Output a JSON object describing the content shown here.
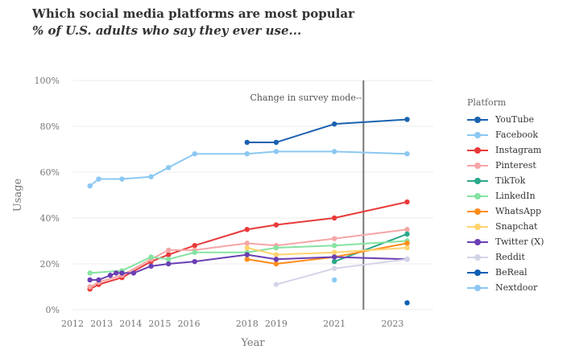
{
  "title": "Which social media platforms are most popular",
  "subtitle": "% of U.S. adults who say they ever use...",
  "chart_data": {
    "type": "line",
    "xlabel": "Year",
    "ylabel": "Usage",
    "xlim": [
      2012,
      2024.4
    ],
    "ylim": [
      0,
      100
    ],
    "x_ticks": [
      2012,
      2013,
      2014,
      2015,
      2016,
      2018,
      2019,
      2021,
      2023
    ],
    "y_ticks": [
      "0%",
      "20%",
      "40%",
      "60%",
      "80%",
      "100%"
    ],
    "y_tick_values": [
      0,
      20,
      40,
      60,
      80,
      100
    ],
    "grid": "horizontal",
    "legend_title": "Platform",
    "legend_position": "right",
    "annotation": {
      "text": "Change in survey mode--",
      "x": 2022.0
    },
    "series": [
      {
        "name": "YouTube",
        "color": "#1a62b0",
        "points": [
          [
            2018,
            73
          ],
          [
            2019,
            73
          ],
          [
            2021,
            81
          ],
          [
            2023.5,
            83
          ]
        ]
      },
      {
        "name": "Facebook",
        "color": "#8bc8f2",
        "points": [
          [
            2012.6,
            54
          ],
          [
            2012.9,
            57
          ],
          [
            2013.7,
            57
          ],
          [
            2014.7,
            58
          ],
          [
            2015.3,
            62
          ],
          [
            2016.2,
            68
          ],
          [
            2018,
            68
          ],
          [
            2019,
            69
          ],
          [
            2021,
            69
          ],
          [
            2023.5,
            68
          ]
        ]
      },
      {
        "name": "Instagram",
        "color": "#e83a3a",
        "points": [
          [
            2012.6,
            9
          ],
          [
            2012.9,
            11
          ],
          [
            2013.7,
            14
          ],
          [
            2014.7,
            21
          ],
          [
            2015.3,
            24
          ],
          [
            2016.2,
            28
          ],
          [
            2018,
            35
          ],
          [
            2019,
            37
          ],
          [
            2021,
            40
          ],
          [
            2023.5,
            47
          ]
        ]
      },
      {
        "name": "Pinterest",
        "color": "#f5a6a6",
        "points": [
          [
            2012.6,
            10
          ],
          [
            2012.9,
            12
          ],
          [
            2013.7,
            15
          ],
          [
            2014.7,
            22
          ],
          [
            2015.3,
            26
          ],
          [
            2016.2,
            26
          ],
          [
            2018,
            29
          ],
          [
            2019,
            28
          ],
          [
            2021,
            31
          ],
          [
            2023.5,
            35
          ]
        ]
      },
      {
        "name": "TikTok",
        "color": "#2ba88a",
        "points": [
          [
            2021,
            21
          ],
          [
            2023.5,
            33
          ]
        ]
      },
      {
        "name": "LinkedIn",
        "color": "#86e3a1",
        "points": [
          [
            2012.6,
            16
          ],
          [
            2013.7,
            17
          ],
          [
            2014.7,
            23
          ],
          [
            2015.3,
            22
          ],
          [
            2016.2,
            25
          ],
          [
            2018,
            25
          ],
          [
            2019,
            27
          ],
          [
            2021,
            28
          ],
          [
            2023.5,
            30
          ]
        ]
      },
      {
        "name": "WhatsApp",
        "color": "#ff8c1a",
        "points": [
          [
            2018,
            22
          ],
          [
            2019,
            20
          ],
          [
            2021,
            23
          ],
          [
            2023.5,
            29
          ]
        ]
      },
      {
        "name": "Snapchat",
        "color": "#ffd36e",
        "points": [
          [
            2018,
            27
          ],
          [
            2019,
            24
          ],
          [
            2021,
            25
          ],
          [
            2023.5,
            27
          ]
        ]
      },
      {
        "name": "Twitter (X)",
        "color": "#6a3fb5",
        "points": [
          [
            2012.6,
            13
          ],
          [
            2012.9,
            13
          ],
          [
            2013.3,
            15
          ],
          [
            2013.5,
            16
          ],
          [
            2013.7,
            16
          ],
          [
            2014.1,
            16
          ],
          [
            2014.7,
            19
          ],
          [
            2015.3,
            20
          ],
          [
            2016.2,
            21
          ],
          [
            2018,
            24
          ],
          [
            2019,
            22
          ],
          [
            2021,
            23
          ],
          [
            2023.5,
            22
          ]
        ]
      },
      {
        "name": "Reddit",
        "color": "#d4d4e8",
        "points": [
          [
            2019,
            11
          ],
          [
            2021,
            18
          ],
          [
            2023.5,
            22
          ]
        ]
      },
      {
        "name": "BeReal",
        "color": "#0d5fb3",
        "points": [
          [
            2023.5,
            3
          ]
        ]
      },
      {
        "name": "Nextdoor",
        "color": "#8bc8f2",
        "points": [
          [
            2021,
            13
          ]
        ]
      }
    ]
  }
}
